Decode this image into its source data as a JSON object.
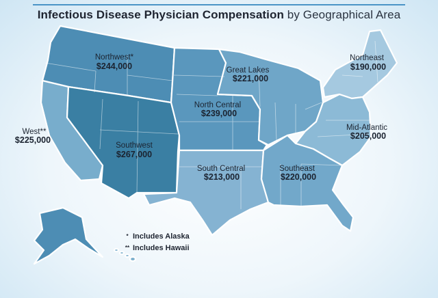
{
  "title": {
    "bold": "Infectious Disease Physician Compensation",
    "rest": " by Geographical Area"
  },
  "regions": [
    {
      "id": "northwest",
      "name": "Northwest*",
      "value": "$244,000",
      "color": "#4d8db4"
    },
    {
      "id": "west",
      "name": "West**",
      "value": "$225,000",
      "color": "#78adcc"
    },
    {
      "id": "southwest",
      "name": "Southwest",
      "value": "$267,000",
      "color": "#3a7fa3"
    },
    {
      "id": "north-central",
      "name": "North Central",
      "value": "$239,000",
      "color": "#5a97bd"
    },
    {
      "id": "great-lakes",
      "name": "Great Lakes",
      "value": "$221,000",
      "color": "#6fa6c8"
    },
    {
      "id": "northeast",
      "name": "Northeast",
      "value": "$190,000",
      "color": "#a5c9e0"
    },
    {
      "id": "mid-atlantic",
      "name": "Mid-Atlantic",
      "value": "$205,000",
      "color": "#8cbad6"
    },
    {
      "id": "south-central",
      "name": "South Central",
      "value": "$213,000",
      "color": "#85b3d2"
    },
    {
      "id": "southeast",
      "name": "Southeast",
      "value": "$220,000",
      "color": "#72a8ca"
    }
  ],
  "legend": [
    {
      "symbol": "*",
      "text": "Includes Alaska"
    },
    {
      "symbol": "**",
      "text": "Includes Hawaii"
    }
  ]
}
